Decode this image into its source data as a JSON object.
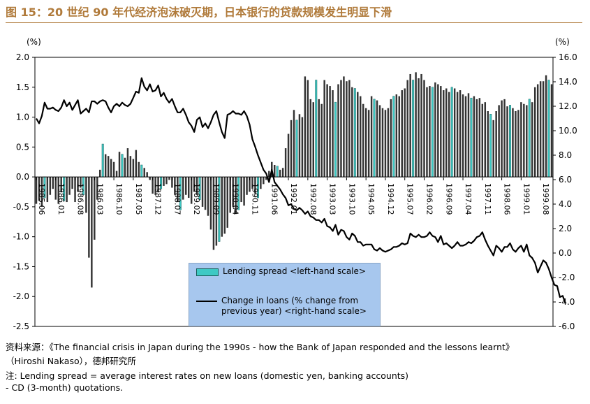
{
  "header": {
    "title": "图 15：20 世纪 90 年代经济泡沫破灭期，日本银行的贷款规模发生明显下滑"
  },
  "chart_data": {
    "type": "bar",
    "ylabel_left": "(%)",
    "ylabel_right": "(%)",
    "ylim_left": [
      -2.5,
      2.0
    ],
    "ylim_right": [
      -6.0,
      16.0
    ],
    "yticks_left": [
      "2.0",
      "1.5",
      "1.0",
      "0.5",
      "0.0",
      "-0.5",
      "-1.0",
      "-1.5",
      "-2.0",
      "-2.5"
    ],
    "yticks_right": [
      "16.0",
      "14.0",
      "12.0",
      "10.0",
      "8.0",
      "6.0",
      "4.0",
      "2.0",
      "0.0",
      "-2.0",
      "-4.0",
      "-6.0"
    ],
    "xticks": [
      {
        "label": "1985.06",
        "i": 0
      },
      {
        "label": "1986.01",
        "i": 7
      },
      {
        "label": "1986.08",
        "i": 14
      },
      {
        "label": "1986.03",
        "i": 21
      },
      {
        "label": "1986.10",
        "i": 28
      },
      {
        "label": "1987.05",
        "i": 35
      },
      {
        "label": "1987.12",
        "i": 42
      },
      {
        "label": "1988.07",
        "i": 49
      },
      {
        "label": "1989.02",
        "i": 56
      },
      {
        "label": "1989.09",
        "i": 63
      },
      {
        "label": "1990.04",
        "i": 70
      },
      {
        "label": "1990.11",
        "i": 77
      },
      {
        "label": "1991.06",
        "i": 84
      },
      {
        "label": "1992.01",
        "i": 91
      },
      {
        "label": "1992.08",
        "i": 98
      },
      {
        "label": "1993.03",
        "i": 105
      },
      {
        "label": "1993.10",
        "i": 112
      },
      {
        "label": "1994.05",
        "i": 119
      },
      {
        "label": "1994.12",
        "i": 126
      },
      {
        "label": "1995.07",
        "i": 133
      },
      {
        "label": "1996.02",
        "i": 140
      },
      {
        "label": "1996.09",
        "i": 147
      },
      {
        "label": "1997.04",
        "i": 154
      },
      {
        "label": "1997.11",
        "i": 161
      },
      {
        "label": "1998.06",
        "i": 168
      },
      {
        "label": "1999.01",
        "i": 175
      },
      {
        "label": "1999.08",
        "i": 182
      }
    ],
    "series": [
      {
        "name": "Lending spread <left-hand scale>",
        "axis": "left",
        "kind": "bar",
        "highlight_every": 7,
        "values": [
          -0.45,
          -0.4,
          -0.5,
          -0.35,
          -0.42,
          -0.3,
          -0.2,
          -0.38,
          -0.45,
          -0.25,
          -0.4,
          -0.42,
          -0.3,
          -0.2,
          -0.42,
          -0.25,
          -0.18,
          -0.3,
          -0.6,
          -1.35,
          -1.85,
          -1.05,
          -0.38,
          0.12,
          0.55,
          0.38,
          0.35,
          0.3,
          0.25,
          0.1,
          0.42,
          0.38,
          0.32,
          0.48,
          0.35,
          0.3,
          0.45,
          0.25,
          0.2,
          0.15,
          0.08,
          -0.05,
          -0.28,
          -0.3,
          -0.25,
          -0.2,
          -0.15,
          -0.12,
          -0.05,
          -0.18,
          -0.3,
          -0.42,
          -0.55,
          -0.38,
          -0.3,
          -0.35,
          -0.45,
          -0.25,
          -0.3,
          -0.38,
          -0.5,
          -0.55,
          -0.65,
          -0.88,
          -1.22,
          -1.15,
          -1.08,
          -1.0,
          -0.95,
          -0.85,
          -0.6,
          -0.5,
          -0.62,
          -0.55,
          -0.42,
          -0.48,
          -0.3,
          -0.25,
          -0.2,
          -0.28,
          -0.35,
          -0.2,
          -0.12,
          -0.05,
          0.1,
          0.25,
          0.2,
          0.18,
          0.12,
          0.15,
          0.48,
          0.72,
          0.95,
          1.12,
          0.95,
          1.05,
          1.0,
          1.68,
          1.62,
          1.3,
          1.25,
          1.62,
          1.3,
          1.22,
          1.62,
          1.55,
          1.52,
          1.45,
          1.25,
          1.55,
          1.62,
          1.68,
          1.6,
          1.62,
          1.5,
          1.48,
          1.42,
          1.35,
          1.22,
          1.15,
          1.12,
          1.35,
          1.3,
          1.28,
          1.2,
          1.15,
          1.12,
          1.15,
          1.3,
          1.35,
          1.38,
          1.35,
          1.45,
          1.48,
          1.62,
          1.72,
          1.62,
          1.75,
          1.65,
          1.72,
          1.62,
          1.5,
          1.52,
          1.5,
          1.58,
          1.55,
          1.52,
          1.45,
          1.48,
          1.42,
          1.5,
          1.48,
          1.42,
          1.45,
          1.38,
          1.35,
          1.4,
          1.32,
          1.35,
          1.3,
          1.32,
          1.22,
          1.25,
          1.1,
          1.05,
          0.95,
          1.1,
          1.2,
          1.28,
          1.3,
          1.18,
          1.2,
          1.15,
          1.1,
          1.12,
          1.25,
          1.22,
          1.2,
          1.3,
          1.25,
          1.5,
          1.55,
          1.6,
          1.6,
          1.7,
          1.62,
          1.55
        ]
      },
      {
        "name": "Change in loans (% change from previous year) <right-hand scale>",
        "axis": "right",
        "kind": "line",
        "values": [
          11,
          10.6,
          11.2,
          12.3,
          11.8,
          11.8,
          11.9,
          11.7,
          11.6,
          11.9,
          12.5,
          12,
          12.3,
          11.7,
          12.1,
          12.5,
          11.4,
          11.6,
          11.8,
          11.5,
          12.4,
          12.4,
          12.2,
          12.4,
          12.5,
          12.4,
          11.9,
          11.5,
          12,
          12.2,
          12,
          12.3,
          12.1,
          12,
          12.2,
          12.7,
          13.2,
          13.1,
          14.3,
          13.6,
          13.3,
          13.8,
          13.2,
          13.3,
          13.7,
          12.8,
          13.1,
          12.6,
          12.3,
          12.6,
          12,
          11.5,
          11.5,
          11.8,
          11.3,
          10.7,
          10.4,
          9.9,
          10.9,
          11.1,
          10.3,
          10.6,
          10.2,
          10.7,
          11.3,
          11.6,
          10.7,
          9.9,
          9.4,
          11.3,
          11.4,
          11.6,
          11.4,
          11.4,
          11.3,
          11.6,
          11.2,
          10.5,
          9.3,
          8.7,
          8,
          7.4,
          6.8,
          6.5,
          5.8,
          6.8,
          5.8,
          5.5,
          5.2,
          4.8,
          4.5,
          3.9,
          4,
          3.6,
          3.5,
          3.7,
          3.5,
          3.2,
          3.4,
          3,
          2.9,
          2.7,
          2.7,
          2.5,
          2.8,
          2.2,
          2.1,
          1.8,
          2.3,
          1.5,
          1.9,
          1.8,
          1.3,
          1.1,
          1.6,
          1.4,
          0.9,
          0.9,
          0.6,
          0.7,
          0.7,
          0.7,
          0.3,
          0.2,
          0.4,
          0.2,
          0.1,
          0.2,
          0.3,
          0.5,
          0.5,
          0.6,
          0.8,
          0.7,
          0.8,
          1.6,
          1.4,
          1.3,
          1.5,
          1.3,
          1.3,
          1.4,
          1.7,
          1.4,
          1.3,
          0.9,
          1.4,
          0.7,
          0.8,
          0.6,
          0.4,
          0.6,
          0.9,
          0.6,
          0.6,
          0.7,
          0.9,
          0.8,
          1,
          1.3,
          1.4,
          1.7,
          1.1,
          0.6,
          0.2,
          -0.2,
          0.6,
          0.4,
          0.1,
          0.5,
          0.5,
          0.8,
          0.3,
          0.1,
          0.4,
          0.6,
          0.1,
          0.7,
          -0.2,
          -0.4,
          -0.8,
          -1.6,
          -1.1,
          -0.6,
          -0.8,
          -1.3,
          -2,
          -2.6,
          -2.7,
          -3.6,
          -3.5,
          -4.1
        ]
      }
    ]
  },
  "legend": {
    "bar_label": "Lending spread <left-hand scale>",
    "line_label_1": "Change in loans (% change from",
    "line_label_2": "previous year) <right-hand scale>"
  },
  "notes": {
    "source": "资料来源：《The financial crisis in Japan during the 1990s - how the Bank of Japan responded and the lessons learnt》",
    "author": "（Hiroshi Nakaso），德邦研究所",
    "note1": "注: Lending spread = average interest rates on new loans (domestic yen, banking accounts)",
    "note2": "- CD (3-month) quotations."
  },
  "colors": {
    "title": "#b07a3a",
    "highlight_bar": "#3ec9c4",
    "legend_bg": "#a7c7ee"
  }
}
